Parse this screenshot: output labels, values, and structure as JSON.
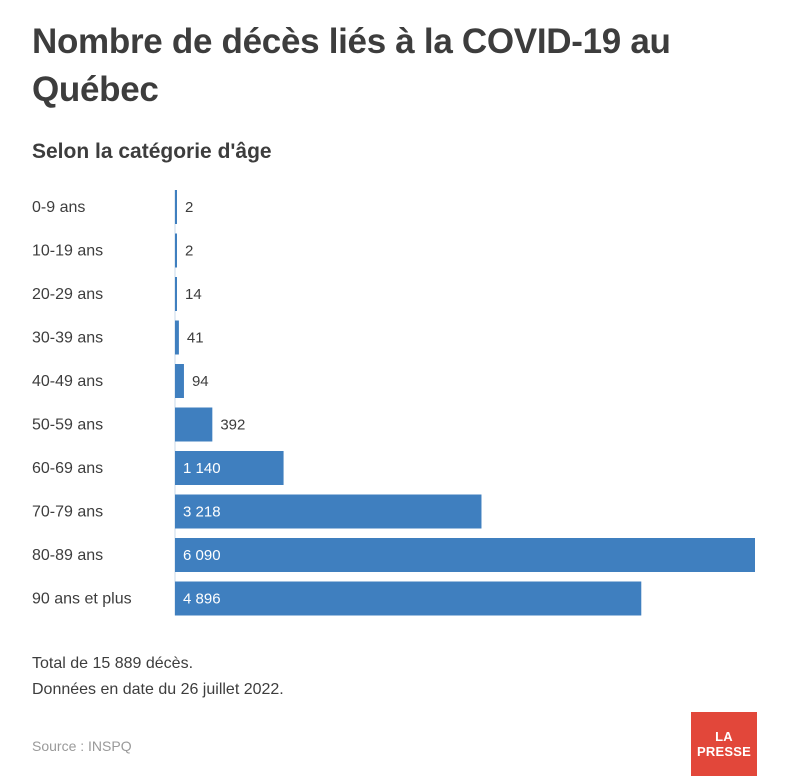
{
  "header": {
    "title": "Nombre de décès liés à la COVID-19 au Québec",
    "subtitle": "Selon la catégorie d'âge"
  },
  "chart_data": {
    "type": "bar",
    "orientation": "horizontal",
    "title": "Nombre de décès liés à la COVID-19 au Québec",
    "subtitle": "Selon la catégorie d'âge",
    "categories": [
      "0-9 ans",
      "10-19 ans",
      "20-29 ans",
      "30-39 ans",
      "40-49 ans",
      "50-59 ans",
      "60-69 ans",
      "70-79 ans",
      "80-89 ans",
      "90 ans et plus"
    ],
    "values": [
      2,
      2,
      14,
      41,
      94,
      392,
      1140,
      3218,
      6090,
      4896
    ],
    "value_labels": [
      "2",
      "2",
      "14",
      "41",
      "94",
      "392",
      "1 140",
      "3 218",
      "6 090",
      "4 896"
    ],
    "xlim": [
      0,
      6090
    ],
    "bar_color": "#3f7fbf",
    "grid": false,
    "legend": "none"
  },
  "footer": {
    "total_note": "Total de 15 889 décès.",
    "date_note": "Données en date du 26 juillet 2022.",
    "source": "Source : INSPQ"
  },
  "logo": {
    "line1": "LA",
    "line2": "PRESSE",
    "color": "#e2473a"
  }
}
